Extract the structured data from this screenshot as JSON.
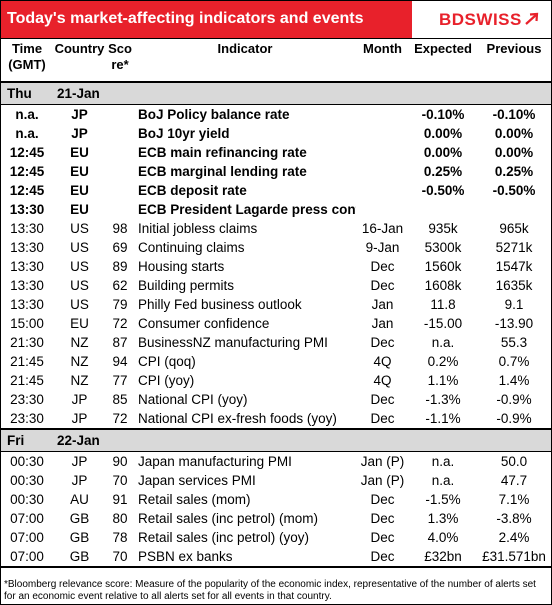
{
  "header": {
    "title": "Today's market-affecting indicators and events",
    "logo": "BDSWISS",
    "logo_icon": "swoosh-arrow",
    "accent_color": "#e8212b"
  },
  "columns": {
    "time": "Time (GMT)",
    "country": "Country",
    "score": "Sco re*",
    "indicator": "Indicator",
    "month": "Month",
    "expected": "Expected",
    "previous": "Previous"
  },
  "days": [
    {
      "day": "Thu",
      "date": "21-Jan",
      "rows": [
        {
          "time": "n.a.",
          "country": "JP",
          "score": "",
          "indicator": "BoJ  Policy balance rate",
          "month": "",
          "expected": "-0.10%",
          "previous": "-0.10%",
          "bold": true
        },
        {
          "time": "n.a.",
          "country": "JP",
          "score": "",
          "indicator": "BoJ 10yr yield",
          "month": "",
          "expected": "0.00%",
          "previous": "0.00%",
          "bold": true
        },
        {
          "time": "12:45",
          "country": "EU",
          "score": "",
          "indicator": "ECB main refinancing rate",
          "month": "",
          "expected": "0.00%",
          "previous": "0.00%",
          "bold": true
        },
        {
          "time": "12:45",
          "country": "EU",
          "score": "",
          "indicator": "ECB marginal lending rate",
          "month": "",
          "expected": "0.25%",
          "previous": "0.25%",
          "bold": true
        },
        {
          "time": "12:45",
          "country": "EU",
          "score": "",
          "indicator": "ECB deposit rate",
          "month": "",
          "expected": "-0.50%",
          "previous": "-0.50%",
          "bold": true
        },
        {
          "time": "13:30",
          "country": "EU",
          "score": "",
          "indicator": "ECB President Lagarde press conference",
          "month": "",
          "expected": "",
          "previous": "",
          "bold": true
        },
        {
          "time": "13:30",
          "country": "US",
          "score": "98",
          "indicator": "Initial jobless claims",
          "month": "16-Jan",
          "expected": "935k",
          "previous": "965k",
          "bold": false
        },
        {
          "time": "13:30",
          "country": "US",
          "score": "69",
          "indicator": "Continuing claims",
          "month": "9-Jan",
          "expected": "5300k",
          "previous": "5271k",
          "bold": false
        },
        {
          "time": "13:30",
          "country": "US",
          "score": "89",
          "indicator": "Housing starts",
          "month": "Dec",
          "expected": "1560k",
          "previous": "1547k",
          "bold": false
        },
        {
          "time": "13:30",
          "country": "US",
          "score": "62",
          "indicator": "Building permits",
          "month": "Dec",
          "expected": "1608k",
          "previous": "1635k",
          "bold": false
        },
        {
          "time": "13:30",
          "country": "US",
          "score": "79",
          "indicator": "Philly Fed business outlook",
          "month": "Jan",
          "expected": "11.8",
          "previous": "9.1",
          "bold": false
        },
        {
          "time": "15:00",
          "country": "EU",
          "score": "72",
          "indicator": "Consumer confidence",
          "month": "Jan",
          "expected": "-15.00",
          "previous": "-13.90",
          "bold": false
        },
        {
          "time": "21:30",
          "country": "NZ",
          "score": "87",
          "indicator": "BusinessNZ manufacturing PMI",
          "month": "Dec",
          "expected": "n.a.",
          "previous": "55.3",
          "bold": false
        },
        {
          "time": "21:45",
          "country": "NZ",
          "score": "94",
          "indicator": "CPI (qoq)",
          "month": "4Q",
          "expected": "0.2%",
          "previous": "0.7%",
          "bold": false
        },
        {
          "time": "21:45",
          "country": "NZ",
          "score": "77",
          "indicator": "CPI (yoy)",
          "month": "4Q",
          "expected": "1.1%",
          "previous": "1.4%",
          "bold": false
        },
        {
          "time": "23:30",
          "country": "JP",
          "score": "85",
          "indicator": "National CPI (yoy)",
          "month": "Dec",
          "expected": "-1.3%",
          "previous": "-0.9%",
          "bold": false
        },
        {
          "time": "23:30",
          "country": "JP",
          "score": "72",
          "indicator": "National CPI ex-fresh foods (yoy)",
          "month": "Dec",
          "expected": "-1.1%",
          "previous": "-0.9%",
          "bold": false
        }
      ]
    },
    {
      "day": "Fri",
      "date": "22-Jan",
      "rows": [
        {
          "time": "00:30",
          "country": "JP",
          "score": "90",
          "indicator": "Japan manufacturing PMI",
          "month": "Jan (P)",
          "expected": "n.a.",
          "previous": "50.0",
          "bold": false
        },
        {
          "time": "00:30",
          "country": "JP",
          "score": "70",
          "indicator": "Japan services PMI",
          "month": "Jan (P)",
          "expected": "n.a.",
          "previous": "47.7",
          "bold": false
        },
        {
          "time": "00:30",
          "country": "AU",
          "score": "91",
          "indicator": "Retail sales (mom)",
          "month": "Dec",
          "expected": "-1.5%",
          "previous": "7.1%",
          "bold": false
        },
        {
          "time": "07:00",
          "country": "GB",
          "score": "80",
          "indicator": "Retail sales (inc petrol) (mom)",
          "month": "Dec",
          "expected": "1.3%",
          "previous": "-3.8%",
          "bold": false
        },
        {
          "time": "07:00",
          "country": "GB",
          "score": "78",
          "indicator": "Retail sales (inc petrol) (yoy)",
          "month": "Dec",
          "expected": "4.0%",
          "previous": "2.4%",
          "bold": false
        },
        {
          "time": "07:00",
          "country": "GB",
          "score": "70",
          "indicator": "PSBN ex banks",
          "month": "Dec",
          "expected": "£32bn",
          "previous": "£31.571bn",
          "bold": false
        }
      ]
    }
  ],
  "footnote": "*Bloomberg relevance score:  Measure of the popularity of the economic index, representative of the number of alerts set for an economic event relative to all alerts set for all events in that country."
}
